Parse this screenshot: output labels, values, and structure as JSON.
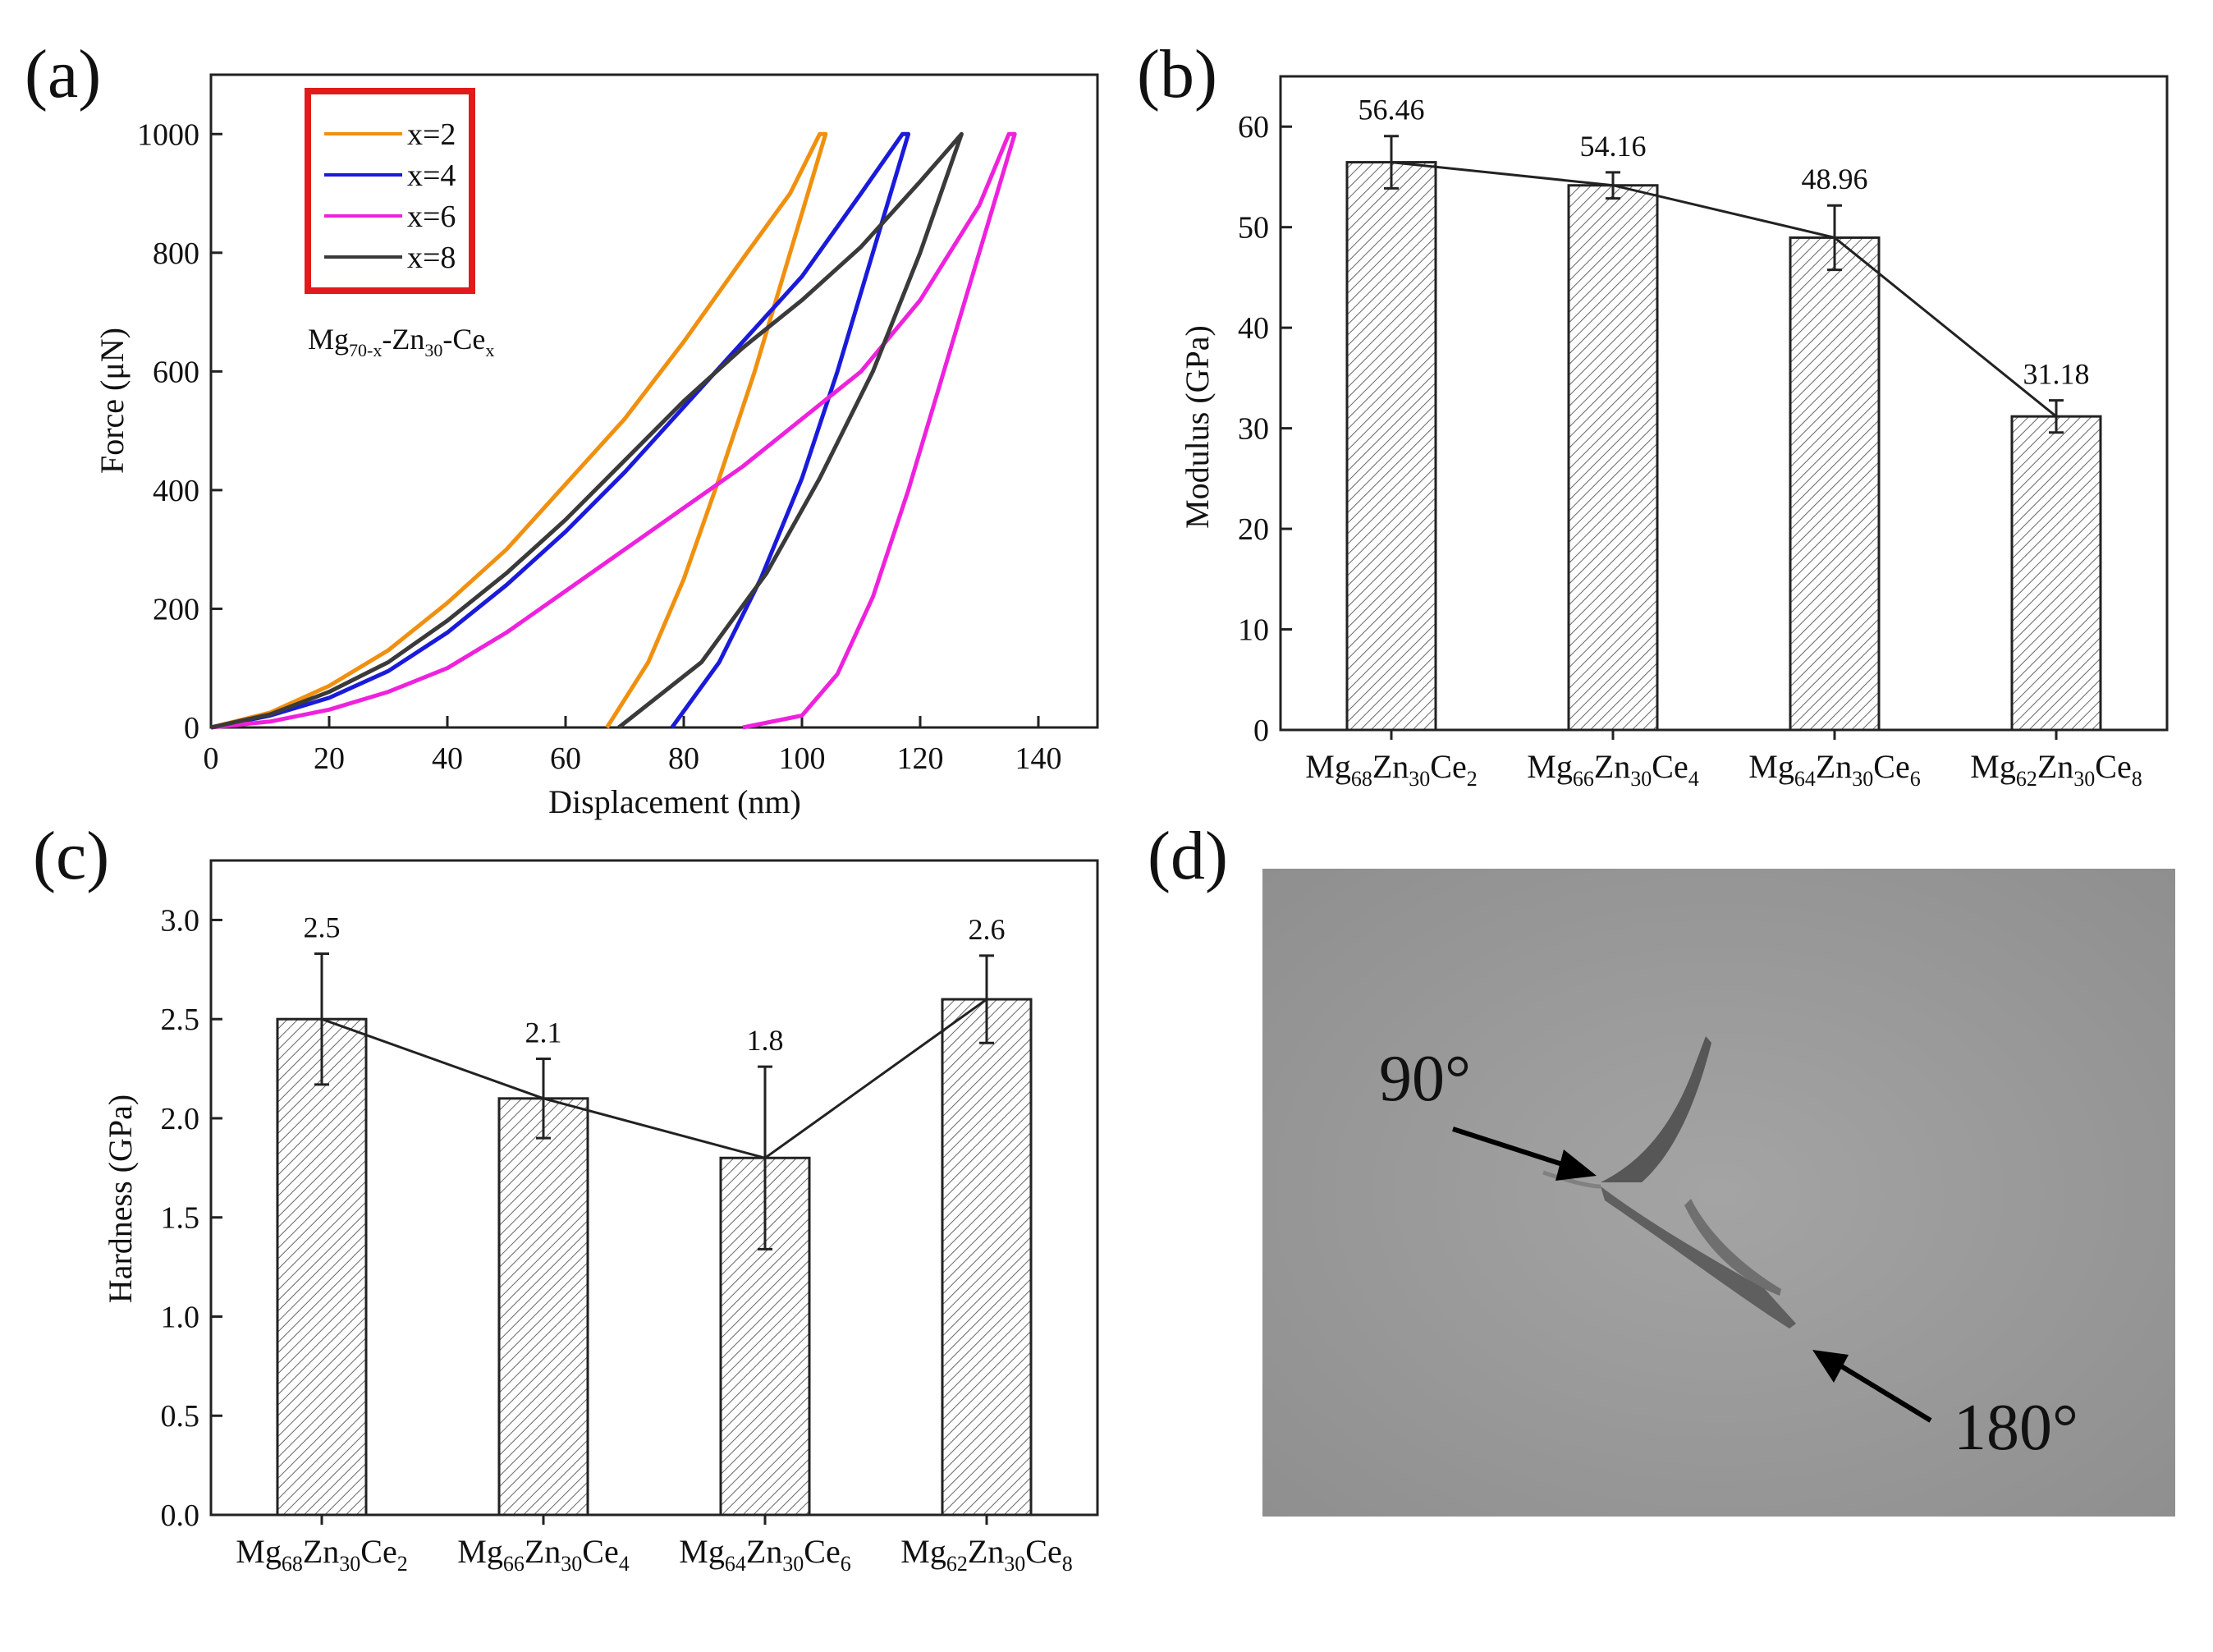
{
  "figure": {
    "panel_labels": [
      "(a)",
      "(b)",
      "(c)",
      "(d)"
    ]
  },
  "chart_data": [
    {
      "panel": "(a)",
      "type": "line",
      "title": "",
      "xlabel": "Displacement (nm)",
      "ylabel": "Force (μN)",
      "xlim": [
        0,
        150
      ],
      "ylim": [
        0,
        1100
      ],
      "xticks": [
        0,
        20,
        40,
        60,
        80,
        100,
        120,
        140
      ],
      "yticks": [
        0,
        200,
        400,
        600,
        800,
        1000
      ],
      "annotation": {
        "base": "Mg",
        "sub1": "70-x",
        "mid1": "-Zn",
        "sub2": "30",
        "mid2": "-Ce",
        "sub3": "x"
      },
      "legend_position": "top-left",
      "series": [
        {
          "name": "x=2",
          "color": "#f0900f",
          "loading": [
            [
              0,
              0
            ],
            [
              10,
              25
            ],
            [
              20,
              70
            ],
            [
              30,
              130
            ],
            [
              40,
              210
            ],
            [
              50,
              300
            ],
            [
              60,
              410
            ],
            [
              70,
              520
            ],
            [
              80,
              650
            ],
            [
              90,
              790
            ],
            [
              98,
              900
            ],
            [
              103,
              1000
            ]
          ],
          "unloading": [
            [
              104,
              1000
            ],
            [
              98,
              800
            ],
            [
              92,
              600
            ],
            [
              86,
              420
            ],
            [
              80,
              250
            ],
            [
              74,
              110
            ],
            [
              67,
              0
            ]
          ]
        },
        {
          "name": "x=4",
          "color": "#1a1adb",
          "loading": [
            [
              0,
              0
            ],
            [
              10,
              20
            ],
            [
              20,
              50
            ],
            [
              30,
              95
            ],
            [
              40,
              160
            ],
            [
              50,
              240
            ],
            [
              60,
              330
            ],
            [
              70,
              430
            ],
            [
              80,
              540
            ],
            [
              90,
              650
            ],
            [
              100,
              760
            ],
            [
              110,
              900
            ],
            [
              117,
              1000
            ]
          ],
          "unloading": [
            [
              118,
              1000
            ],
            [
              112,
              800
            ],
            [
              106,
              600
            ],
            [
              100,
              420
            ],
            [
              93,
              250
            ],
            [
              86,
              110
            ],
            [
              78,
              0
            ]
          ]
        },
        {
          "name": "x=6",
          "color": "#ee22dd",
          "loading": [
            [
              0,
              0
            ],
            [
              10,
              10
            ],
            [
              20,
              30
            ],
            [
              30,
              60
            ],
            [
              40,
              100
            ],
            [
              50,
              160
            ],
            [
              60,
              230
            ],
            [
              70,
              300
            ],
            [
              80,
              370
            ],
            [
              90,
              440
            ],
            [
              100,
              520
            ],
            [
              110,
              600
            ],
            [
              120,
              720
            ],
            [
              130,
              880
            ],
            [
              135,
              1000
            ]
          ],
          "unloading": [
            [
              136,
              1000
            ],
            [
              130,
              800
            ],
            [
              124,
              600
            ],
            [
              118,
              400
            ],
            [
              112,
              220
            ],
            [
              106,
              90
            ],
            [
              100,
              20
            ],
            [
              90,
              0
            ]
          ]
        },
        {
          "name": "x=8",
          "color": "#3a3a3a",
          "loading": [
            [
              0,
              0
            ],
            [
              10,
              22
            ],
            [
              20,
              60
            ],
            [
              30,
              110
            ],
            [
              40,
              180
            ],
            [
              50,
              260
            ],
            [
              60,
              350
            ],
            [
              70,
              450
            ],
            [
              80,
              550
            ],
            [
              90,
              640
            ],
            [
              100,
              720
            ],
            [
              110,
              810
            ],
            [
              120,
              920
            ],
            [
              127,
              1000
            ]
          ],
          "unloading": [
            [
              127,
              1000
            ],
            [
              120,
              800
            ],
            [
              112,
              600
            ],
            [
              103,
              420
            ],
            [
              94,
              260
            ],
            [
              83,
              110
            ],
            [
              69,
              0
            ]
          ]
        }
      ]
    },
    {
      "panel": "(b)",
      "type": "bar",
      "title": "",
      "xlabel": "",
      "ylabel": "Modulus (GPa)",
      "ylim": [
        0,
        65
      ],
      "yticks": [
        0,
        10,
        20,
        30,
        40,
        50,
        60
      ],
      "categories": [
        {
          "base": "Mg",
          "s1": "68",
          "m1": "Zn",
          "s2": "30",
          "m2": "Ce",
          "s3": "2"
        },
        {
          "base": "Mg",
          "s1": "66",
          "m1": "Zn",
          "s2": "30",
          "m2": "Ce",
          "s3": "4"
        },
        {
          "base": "Mg",
          "s1": "64",
          "m1": "Zn",
          "s2": "30",
          "m2": "Ce",
          "s3": "6"
        },
        {
          "base": "Mg",
          "s1": "62",
          "m1": "Zn",
          "s2": "30",
          "m2": "Ce",
          "s3": "8"
        }
      ],
      "values": [
        56.46,
        54.16,
        48.96,
        31.18
      ],
      "errors": [
        2.6,
        1.3,
        3.2,
        1.6
      ],
      "value_labels": [
        "56.46",
        "54.16",
        "48.96",
        "31.18"
      ]
    },
    {
      "panel": "(c)",
      "type": "bar",
      "title": "",
      "xlabel": "",
      "ylabel": "Hardness (GPa)",
      "ylim": [
        0,
        3.3
      ],
      "yticks": [
        "0.0",
        "0.5",
        "1.0",
        "1.5",
        "2.0",
        "2.5",
        "3.0"
      ],
      "categories": [
        {
          "base": "Mg",
          "s1": "68",
          "m1": "Zn",
          "s2": "30",
          "m2": "Ce",
          "s3": "2"
        },
        {
          "base": "Mg",
          "s1": "66",
          "m1": "Zn",
          "s2": "30",
          "m2": "Ce",
          "s3": "4"
        },
        {
          "base": "Mg",
          "s1": "64",
          "m1": "Zn",
          "s2": "30",
          "m2": "Ce",
          "s3": "6"
        },
        {
          "base": "Mg",
          "s1": "62",
          "m1": "Zn",
          "s2": "30",
          "m2": "Ce",
          "s3": "8"
        }
      ],
      "values": [
        2.5,
        2.1,
        1.8,
        2.6
      ],
      "errors": [
        0.33,
        0.2,
        0.46,
        0.22
      ],
      "value_labels": [
        "2.5",
        "2.1",
        "1.8",
        "2.6"
      ]
    }
  ],
  "micrograph": {
    "panel": "(d)",
    "background_color": "#9a9a9a",
    "annotations": [
      "90°",
      "180°"
    ]
  }
}
